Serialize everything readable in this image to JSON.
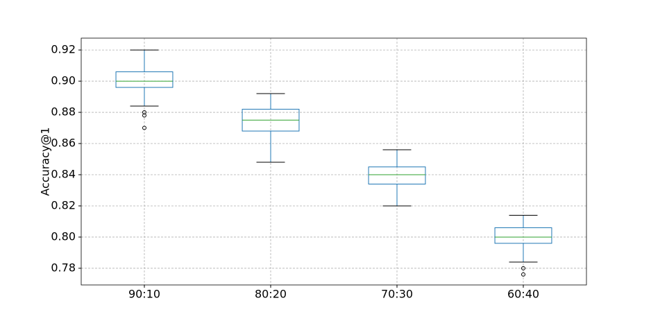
{
  "chart_data": {
    "type": "box",
    "ylabel": "Accuracy@1",
    "categories": [
      "90:10",
      "80:20",
      "70:30",
      "60:40"
    ],
    "boxes": [
      {
        "whislo": 0.884,
        "q1": 0.896,
        "med": 0.9,
        "q3": 0.906,
        "whishi": 0.92,
        "fliers": [
          0.88,
          0.878,
          0.87
        ]
      },
      {
        "whislo": 0.848,
        "q1": 0.868,
        "med": 0.875,
        "q3": 0.882,
        "whishi": 0.892,
        "fliers": []
      },
      {
        "whislo": 0.82,
        "q1": 0.834,
        "med": 0.84,
        "q3": 0.845,
        "whishi": 0.856,
        "fliers": []
      },
      {
        "whislo": 0.784,
        "q1": 0.796,
        "med": 0.8,
        "q3": 0.806,
        "whishi": 0.814,
        "fliers": [
          0.78,
          0.776
        ]
      }
    ],
    "box_color": "#1f77b4",
    "median_color": "#2ca02c",
    "cap_color": "#000000",
    "ylim": [
      0.7693,
      0.9276
    ],
    "yticks": [
      0.78,
      {
        "value": 0.8,
        "label": "0.80"
      },
      0.82,
      0.84,
      0.86,
      0.88,
      {
        "value": 0.9,
        "label": "0.90"
      },
      0.92
    ],
    "grid": true
  }
}
